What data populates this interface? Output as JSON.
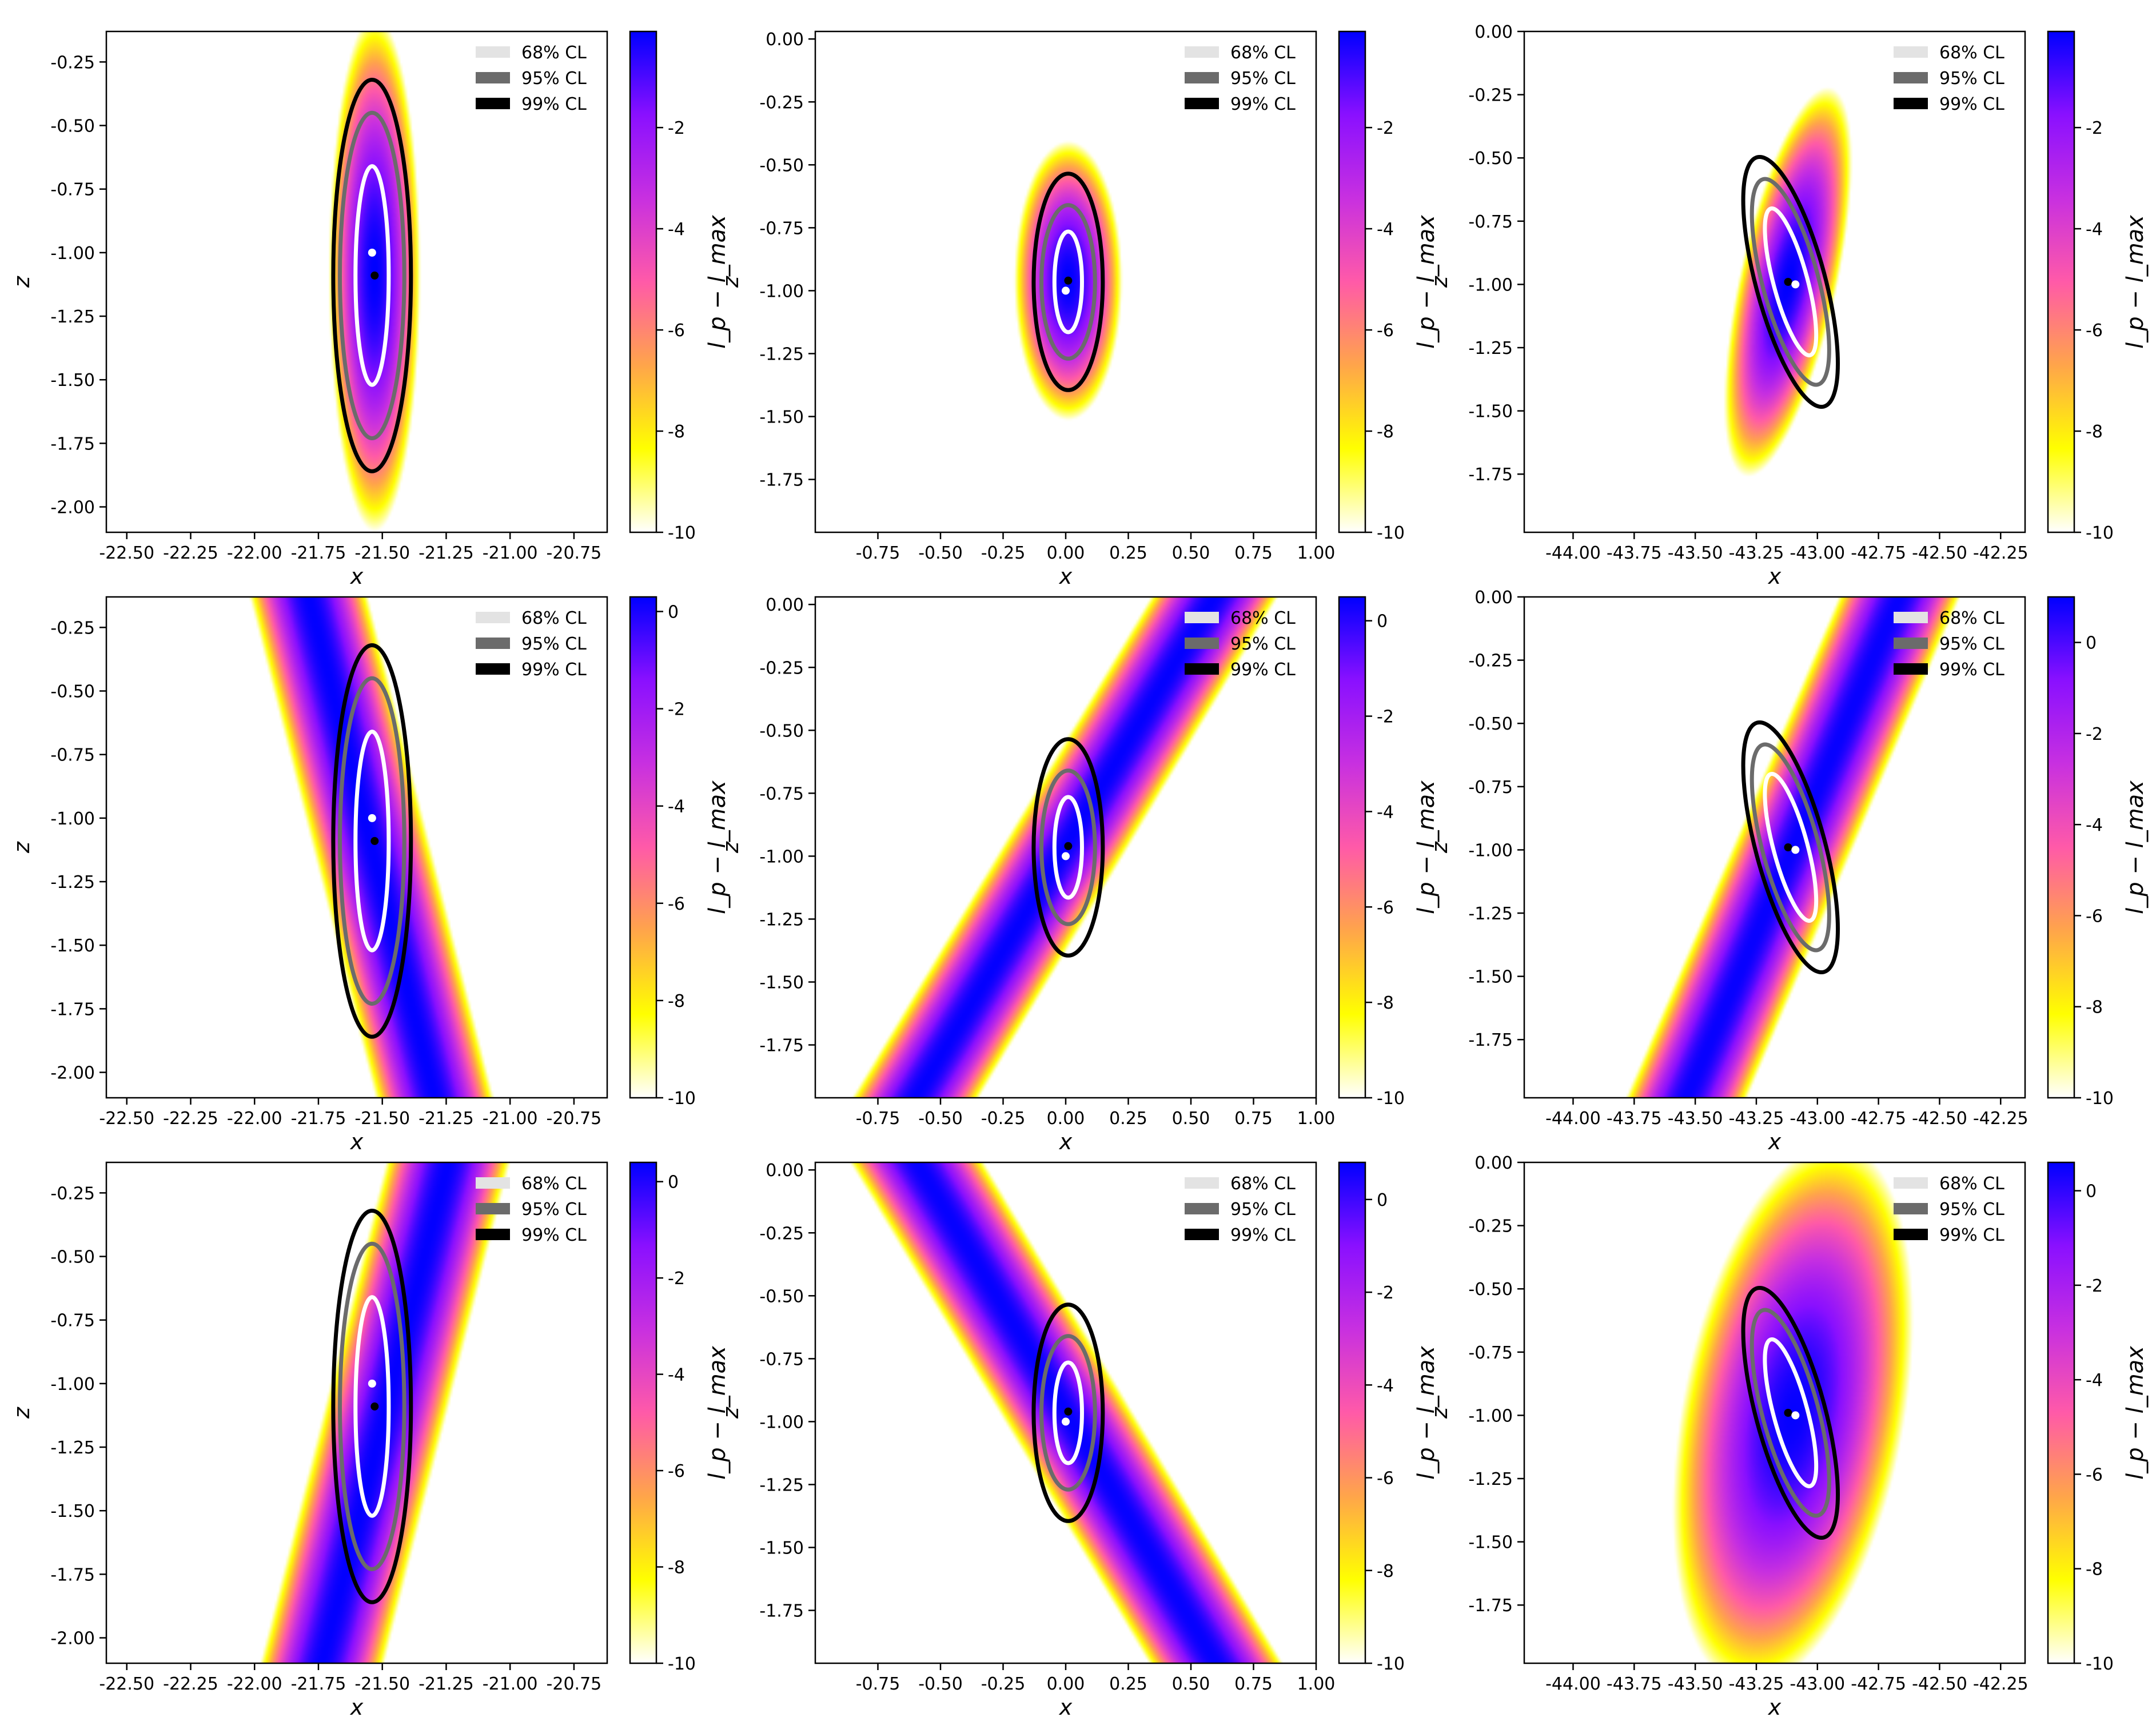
{
  "legend": {
    "entries": [
      "68% CL",
      "95% CL",
      "99% CL"
    ],
    "colors": [
      "#e3e3e3",
      "#6b6b6b",
      "#000000"
    ],
    "placement": "top-right"
  },
  "colormap": {
    "name": "gnuplot2-like",
    "stops": [
      "#ffffff",
      "#ffff00",
      "#ffa54a",
      "#ff5aa8",
      "#c830e0",
      "#8a10ff",
      "#0000ff"
    ]
  },
  "cl_colors": [
    "#ffffff",
    "#6b6b6b",
    "#000000"
  ],
  "chart_data": [
    {
      "type": "heatmap",
      "row": 0,
      "col": 0,
      "xlabel": "x",
      "ylabel": "z",
      "cbar_label": "l_p − l_max",
      "xlim": [
        -22.58,
        -20.62
      ],
      "ylim": [
        -2.1,
        -0.13
      ],
      "xticks": [
        "-22.50",
        "-22.25",
        "-22.00",
        "-21.75",
        "-21.50",
        "-21.25",
        "-21.00",
        "-20.75"
      ],
      "xtick_values": [
        -22.5,
        -22.25,
        -22.0,
        -21.75,
        -21.5,
        -21.25,
        -21.0,
        -20.75
      ],
      "yticks": [
        "-0.25",
        "-0.50",
        "-0.75",
        "-1.00",
        "-1.25",
        "-1.50",
        "-1.75",
        "-2.00"
      ],
      "ytick_values": [
        -0.25,
        -0.5,
        -0.75,
        -1.0,
        -1.25,
        -1.5,
        -1.75,
        -2.0
      ],
      "cbar_range": [
        -10,
        -0.1
      ],
      "cbar_ticks": [
        "-2",
        "-4",
        "-6",
        "-8",
        "-10"
      ],
      "cbar_tick_values": [
        -2,
        -4,
        -6,
        -8,
        -10
      ],
      "field": {
        "kind": "ellipse",
        "center": [
          -21.53,
          -1.08
        ],
        "sx": 0.058,
        "sz": 0.33,
        "rho": 0.0
      },
      "ellipses": {
        "center": [
          -21.54,
          -1.09
        ],
        "a": [
          0.065,
          0.126,
          0.152
        ],
        "b": [
          0.43,
          0.64,
          0.77
        ],
        "angle_deg": 0
      },
      "markers": {
        "white": [
          -21.54,
          -1.0
        ],
        "black": [
          -21.53,
          -1.09
        ]
      }
    },
    {
      "type": "heatmap",
      "row": 0,
      "col": 1,
      "xlabel": "x",
      "ylabel": "z",
      "cbar_label": "l_p − l_max",
      "xlim": [
        -1.0,
        1.0
      ],
      "ylim": [
        -1.96,
        0.03
      ],
      "xticks": [
        "-0.75",
        "-0.50",
        "-0.25",
        "0.00",
        "0.25",
        "0.50",
        "0.75",
        "1.00"
      ],
      "xtick_values": [
        -0.75,
        -0.5,
        -0.25,
        0.0,
        0.25,
        0.5,
        0.75,
        1.0
      ],
      "yticks": [
        "0.00",
        "-0.25",
        "-0.50",
        "-0.75",
        "-1.00",
        "-1.25",
        "-1.50",
        "-1.75"
      ],
      "ytick_values": [
        0.0,
        -0.25,
        -0.5,
        -0.75,
        -1.0,
        -1.25,
        -1.5,
        -1.75
      ],
      "cbar_range": [
        -10,
        -0.1
      ],
      "cbar_ticks": [
        "-2",
        "-4",
        "-6",
        "-8",
        "-10"
      ],
      "cbar_tick_values": [
        -2,
        -4,
        -6,
        -8,
        -10
      ],
      "field": {
        "kind": "ellipse",
        "center": [
          0.01,
          -0.96
        ],
        "sx": 0.07,
        "sz": 0.18,
        "rho": 0.0
      },
      "ellipses": {
        "center": [
          0.01,
          -0.965
        ],
        "a": [
          0.055,
          0.107,
          0.138
        ],
        "b": [
          0.2,
          0.305,
          0.43
        ],
        "angle_deg": 0
      },
      "markers": {
        "white": [
          0.0,
          -1.0
        ],
        "black": [
          0.01,
          -0.96
        ]
      }
    },
    {
      "type": "heatmap",
      "row": 0,
      "col": 2,
      "xlabel": "x",
      "ylabel": "z",
      "cbar_label": "l_p − l_max",
      "xlim": [
        -44.2,
        -42.15
      ],
      "ylim": [
        -1.98,
        0.0
      ],
      "xticks": [
        "-44.00",
        "-43.75",
        "-43.50",
        "-43.25",
        "-43.00",
        "-42.75",
        "-42.50",
        "-42.25"
      ],
      "xtick_values": [
        -44.0,
        -43.75,
        -43.5,
        -43.25,
        -43.0,
        -42.75,
        -42.5,
        -42.25
      ],
      "yticks": [
        "0.00",
        "-0.25",
        "-0.50",
        "-0.75",
        "-1.00",
        "-1.25",
        "-1.50",
        "-1.75"
      ],
      "ytick_values": [
        0.0,
        -0.25,
        -0.5,
        -0.75,
        -1.0,
        -1.25,
        -1.5,
        -1.75
      ],
      "cbar_range": [
        -10,
        -0.1
      ],
      "cbar_ticks": [
        "-2",
        "-4",
        "-6",
        "-8",
        "-10"
      ],
      "cbar_tick_values": [
        -2,
        -4,
        -6,
        -8,
        -10
      ],
      "field": {
        "kind": "ellipse",
        "center": [
          -43.12,
          -0.99
        ],
        "sx": 0.085,
        "sz": 0.25,
        "rho": 0.62
      },
      "ellipses": {
        "center": [
          -43.11,
          -0.99
        ],
        "a": [
          0.07,
          0.115,
          0.142
        ],
        "b": [
          0.3,
          0.42,
          0.51
        ],
        "angle_deg": -15
      },
      "markers": {
        "white": [
          -43.09,
          -1.0
        ],
        "black": [
          -43.12,
          -0.99
        ]
      }
    },
    {
      "type": "heatmap",
      "row": 1,
      "col": 0,
      "xlabel": "x",
      "ylabel": "z",
      "cbar_label": "l_p − l_max",
      "xlim": [
        -22.58,
        -20.62
      ],
      "ylim": [
        -2.1,
        -0.13
      ],
      "xticks": [
        "-22.50",
        "-22.25",
        "-22.00",
        "-21.75",
        "-21.50",
        "-21.25",
        "-21.00",
        "-20.75"
      ],
      "xtick_values": [
        -22.5,
        -22.25,
        -22.0,
        -21.75,
        -21.5,
        -21.25,
        -21.0,
        -20.75
      ],
      "yticks": [
        "-0.25",
        "-0.50",
        "-0.75",
        "-1.00",
        "-1.25",
        "-1.50",
        "-1.75",
        "-2.00"
      ],
      "ytick_values": [
        -0.25,
        -0.5,
        -0.75,
        -1.0,
        -1.25,
        -1.5,
        -1.75,
        -2.0
      ],
      "cbar_range": [
        -10,
        0.3
      ],
      "cbar_ticks": [
        "0",
        "-2",
        "-4",
        "-6",
        "-8",
        "-10"
      ],
      "cbar_tick_values": [
        0,
        -2,
        -4,
        -6,
        -8,
        -10
      ],
      "field": {
        "kind": "band",
        "x0": -21.55,
        "z0": -1.08,
        "slope_dxdz": -0.25,
        "width": 0.115
      },
      "ellipses": {
        "center": [
          -21.54,
          -1.09
        ],
        "a": [
          0.065,
          0.126,
          0.152
        ],
        "b": [
          0.43,
          0.64,
          0.77
        ],
        "angle_deg": 0
      },
      "markers": {
        "white": [
          -21.54,
          -1.0
        ],
        "black": [
          -21.53,
          -1.09
        ]
      }
    },
    {
      "type": "heatmap",
      "row": 1,
      "col": 1,
      "xlabel": "x",
      "ylabel": "z",
      "cbar_label": "l_p − l_max",
      "xlim": [
        -1.0,
        1.0
      ],
      "ylim": [
        -1.96,
        0.03
      ],
      "xticks": [
        "-0.75",
        "-0.50",
        "-0.25",
        "0.00",
        "0.25",
        "0.50",
        "0.75",
        "1.00"
      ],
      "xtick_values": [
        -0.75,
        -0.5,
        -0.25,
        0.0,
        0.25,
        0.5,
        0.75,
        1.0
      ],
      "yticks": [
        "0.00",
        "-0.25",
        "-0.50",
        "-0.75",
        "-1.00",
        "-1.25",
        "-1.50",
        "-1.75"
      ],
      "ytick_values": [
        0.0,
        -0.25,
        -0.5,
        -0.75,
        -1.0,
        -1.25,
        -1.5,
        -1.75
      ],
      "cbar_range": [
        -10,
        0.5
      ],
      "cbar_ticks": [
        "0",
        "-2",
        "-4",
        "-6",
        "-8",
        "-10"
      ],
      "cbar_tick_values": [
        0,
        -2,
        -4,
        -6,
        -8,
        -10
      ],
      "field": {
        "kind": "band",
        "x0": 0.0,
        "z0": -0.96,
        "slope_dxdz": 0.6,
        "width": 0.125
      },
      "ellipses": {
        "center": [
          0.01,
          -0.965
        ],
        "a": [
          0.055,
          0.107,
          0.138
        ],
        "b": [
          0.2,
          0.305,
          0.43
        ],
        "angle_deg": 0
      },
      "markers": {
        "white": [
          0.0,
          -1.0
        ],
        "black": [
          0.01,
          -0.96
        ]
      }
    },
    {
      "type": "heatmap",
      "row": 1,
      "col": 2,
      "xlabel": "x",
      "ylabel": "z",
      "cbar_label": "l_p − l_max",
      "xlim": [
        -44.2,
        -42.15
      ],
      "ylim": [
        -1.98,
        0.0
      ],
      "xticks": [
        "-44.00",
        "-43.75",
        "-43.50",
        "-43.25",
        "-43.00",
        "-42.75",
        "-42.50",
        "-42.25"
      ],
      "xtick_values": [
        -44.0,
        -43.75,
        -43.5,
        -43.25,
        -43.0,
        -42.75,
        -42.5,
        -42.25
      ],
      "yticks": [
        "0.00",
        "-0.25",
        "-0.50",
        "-0.75",
        "-1.00",
        "-1.25",
        "-1.50",
        "-1.75"
      ],
      "ytick_values": [
        0.0,
        -0.25,
        -0.5,
        -0.75,
        -1.0,
        -1.25,
        -1.5,
        -1.75
      ],
      "cbar_range": [
        -10,
        1.0
      ],
      "cbar_ticks": [
        "0",
        "-2",
        "-4",
        "-6",
        "-8",
        "-10"
      ],
      "cbar_tick_values": [
        0,
        -2,
        -4,
        -6,
        -8,
        -10
      ],
      "field": {
        "kind": "band",
        "x0": -43.1,
        "z0": -0.99,
        "slope_dxdz": 0.44,
        "width": 0.12
      },
      "ellipses": {
        "center": [
          -43.11,
          -0.99
        ],
        "a": [
          0.07,
          0.115,
          0.142
        ],
        "b": [
          0.3,
          0.42,
          0.51
        ],
        "angle_deg": -15
      },
      "markers": {
        "white": [
          -43.09,
          -1.0
        ],
        "black": [
          -43.12,
          -0.99
        ]
      }
    },
    {
      "type": "heatmap",
      "row": 2,
      "col": 0,
      "xlabel": "x",
      "ylabel": "z",
      "cbar_label": "l_p − l_max",
      "xlim": [
        -22.58,
        -20.62
      ],
      "ylim": [
        -2.1,
        -0.13
      ],
      "xticks": [
        "-22.50",
        "-22.25",
        "-22.00",
        "-21.75",
        "-21.50",
        "-21.25",
        "-21.00",
        "-20.75"
      ],
      "xtick_values": [
        -22.5,
        -22.25,
        -22.0,
        -21.75,
        -21.5,
        -21.25,
        -21.0,
        -20.75
      ],
      "yticks": [
        "-0.25",
        "-0.50",
        "-0.75",
        "-1.00",
        "-1.25",
        "-1.50",
        "-1.75",
        "-2.00"
      ],
      "ytick_values": [
        -0.25,
        -0.5,
        -0.75,
        -1.0,
        -1.25,
        -1.5,
        -1.75,
        -2.0
      ],
      "cbar_range": [
        -10,
        0.4
      ],
      "cbar_ticks": [
        "0",
        "-2",
        "-4",
        "-6",
        "-8",
        "-10"
      ],
      "cbar_tick_values": [
        0,
        -2,
        -4,
        -6,
        -8,
        -10
      ],
      "field": {
        "kind": "band",
        "x0": -21.48,
        "z0": -1.08,
        "slope_dxdz": 0.25,
        "width": 0.12
      },
      "ellipses": {
        "center": [
          -21.54,
          -1.09
        ],
        "a": [
          0.065,
          0.126,
          0.152
        ],
        "b": [
          0.43,
          0.64,
          0.77
        ],
        "angle_deg": 0
      },
      "markers": {
        "white": [
          -21.54,
          -1.0
        ],
        "black": [
          -21.53,
          -1.09
        ]
      }
    },
    {
      "type": "heatmap",
      "row": 2,
      "col": 1,
      "xlabel": "x",
      "ylabel": "z",
      "cbar_label": "l_p − l_max",
      "xlim": [
        -1.0,
        1.0
      ],
      "ylim": [
        -1.96,
        0.03
      ],
      "xticks": [
        "-0.75",
        "-0.50",
        "-0.25",
        "0.00",
        "0.25",
        "0.50",
        "0.75",
        "1.00"
      ],
      "xtick_values": [
        -0.75,
        -0.5,
        -0.25,
        0.0,
        0.25,
        0.5,
        0.75,
        1.0
      ],
      "yticks": [
        "0.00",
        "-0.25",
        "-0.50",
        "-0.75",
        "-1.00",
        "-1.25",
        "-1.50",
        "-1.75"
      ],
      "ytick_values": [
        0.0,
        -0.25,
        -0.5,
        -0.75,
        -1.0,
        -1.25,
        -1.5,
        -1.75
      ],
      "cbar_range": [
        -10,
        0.8
      ],
      "cbar_ticks": [
        "0",
        "-2",
        "-4",
        "-6",
        "-8",
        "-10"
      ],
      "cbar_tick_values": [
        0,
        -2,
        -4,
        -6,
        -8,
        -10
      ],
      "field": {
        "kind": "band",
        "x0": 0.0,
        "z0": -0.96,
        "slope_dxdz": -0.6,
        "width": 0.13
      },
      "ellipses": {
        "center": [
          0.01,
          -0.965
        ],
        "a": [
          0.055,
          0.107,
          0.138
        ],
        "b": [
          0.2,
          0.305,
          0.43
        ],
        "angle_deg": 0
      },
      "markers": {
        "white": [
          0.0,
          -1.0
        ],
        "black": [
          0.01,
          -0.96
        ]
      }
    },
    {
      "type": "heatmap",
      "row": 2,
      "col": 2,
      "xlabel": "x",
      "ylabel": "z",
      "cbar_label": "l_p − l_max",
      "xlim": [
        -44.2,
        -42.15
      ],
      "ylim": [
        -1.98,
        0.0
      ],
      "xticks": [
        "-44.00",
        "-43.75",
        "-43.50",
        "-43.25",
        "-43.00",
        "-42.75",
        "-42.50",
        "-42.25"
      ],
      "xtick_values": [
        -44.0,
        -43.75,
        -43.5,
        -43.25,
        -43.0,
        -42.75,
        -42.5,
        -42.25
      ],
      "yticks": [
        "0.00",
        "-0.25",
        "-0.50",
        "-0.75",
        "-1.00",
        "-1.25",
        "-1.50",
        "-1.75"
      ],
      "ytick_values": [
        0.0,
        -0.25,
        -0.5,
        -0.75,
        -1.0,
        -1.25,
        -1.5,
        -1.75
      ],
      "cbar_range": [
        -10,
        0.6
      ],
      "cbar_ticks": [
        "0",
        "-2",
        "-4",
        "-6",
        "-8",
        "-10"
      ],
      "cbar_tick_values": [
        0,
        -2,
        -4,
        -6,
        -8,
        -10
      ],
      "field": {
        "kind": "ellipse",
        "center": [
          -43.1,
          -1.0
        ],
        "sx": 0.155,
        "sz": 0.34,
        "rho": 0.35
      },
      "ellipses": {
        "center": [
          -43.11,
          -0.99
        ],
        "a": [
          0.07,
          0.115,
          0.142
        ],
        "b": [
          0.3,
          0.42,
          0.51
        ],
        "angle_deg": -15
      },
      "markers": {
        "white": [
          -43.09,
          -1.0
        ],
        "black": [
          -43.12,
          -0.99
        ]
      }
    }
  ]
}
